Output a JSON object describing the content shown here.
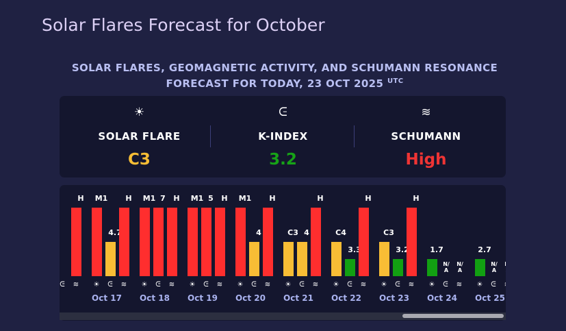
{
  "page": {
    "title": "Solar Flares Forecast for October"
  },
  "heading": {
    "line1": "SOLAR FLARES, GEOMAGNETIC ACTIVITY, AND SCHUMANN RESONANCE",
    "line2": "FORECAST FOR TODAY, 23 OCT 2025",
    "utc": "UTC"
  },
  "summary": [
    {
      "icon": "sun-icon",
      "glyph": "☀",
      "label": "SOLAR FLARE",
      "value": "C3",
      "color": "#f6bd35"
    },
    {
      "icon": "magnet-icon",
      "glyph": "ᕮ",
      "label": "K-INDEX",
      "value": "3.2",
      "color": "#17a317"
    },
    {
      "icon": "waves-icon",
      "glyph": "≋",
      "label": "SCHUMANN",
      "value": "High",
      "color": "#f03434"
    }
  ],
  "colors": {
    "red": "#ff2e2e",
    "yellow": "#f8bd35",
    "green": "#12a012"
  },
  "icon_glyphs": {
    "sun": "☀",
    "magnet": "ᕮ",
    "waves": "≋"
  },
  "days": [
    {
      "date": "",
      "flare": {
        "label": "",
        "level": 1.0,
        "color": "red"
      },
      "k": {
        "label": "",
        "level": 0,
        "color": ""
      },
      "schumann": {
        "label": "H",
        "level": 1.0,
        "color": "red"
      }
    },
    {
      "date": "Oct 17",
      "flare": {
        "label": "M1",
        "level": 1.0,
        "color": "red"
      },
      "k": {
        "label": "4.7",
        "level": 0.5,
        "color": "yellow"
      },
      "schumann": {
        "label": "H",
        "level": 1.0,
        "color": "red"
      }
    },
    {
      "date": "Oct 18",
      "flare": {
        "label": "M1",
        "level": 1.0,
        "color": "red"
      },
      "k": {
        "label": "7",
        "level": 1.0,
        "color": "red"
      },
      "schumann": {
        "label": "H",
        "level": 1.0,
        "color": "red"
      }
    },
    {
      "date": "Oct 19",
      "flare": {
        "label": "M1",
        "level": 1.0,
        "color": "red"
      },
      "k": {
        "label": "5",
        "level": 1.0,
        "color": "red"
      },
      "schumann": {
        "label": "H",
        "level": 1.0,
        "color": "red"
      }
    },
    {
      "date": "Oct 20",
      "flare": {
        "label": "M1",
        "level": 1.0,
        "color": "red"
      },
      "k": {
        "label": "4",
        "level": 0.5,
        "color": "yellow"
      },
      "schumann": {
        "label": "H",
        "level": 1.0,
        "color": "red"
      }
    },
    {
      "date": "Oct 21",
      "flare": {
        "label": "C3",
        "level": 0.5,
        "color": "yellow"
      },
      "k": {
        "label": "4",
        "level": 0.5,
        "color": "yellow"
      },
      "schumann": {
        "label": "H",
        "level": 1.0,
        "color": "red"
      }
    },
    {
      "date": "Oct 22",
      "flare": {
        "label": "C4",
        "level": 0.5,
        "color": "yellow"
      },
      "k": {
        "label": "3.3",
        "level": 0.25,
        "color": "green"
      },
      "schumann": {
        "label": "H",
        "level": 1.0,
        "color": "red"
      }
    },
    {
      "date": "Oct 23",
      "flare": {
        "label": "C3",
        "level": 0.5,
        "color": "yellow"
      },
      "k": {
        "label": "3.2",
        "level": 0.25,
        "color": "green"
      },
      "schumann": {
        "label": "H",
        "level": 1.0,
        "color": "red"
      }
    },
    {
      "date": "Oct 24",
      "flare": {
        "label": "1.7",
        "level": 0.25,
        "color": "green"
      },
      "k": {
        "label": "N/A",
        "level": 0,
        "color": ""
      },
      "schumann": {
        "label": "N/A",
        "level": 0,
        "color": ""
      }
    },
    {
      "date": "Oct 25",
      "flare": {
        "label": "2.7",
        "level": 0.25,
        "color": "green"
      },
      "k": {
        "label": "N/A",
        "level": 0,
        "color": ""
      },
      "schumann": {
        "label": "N/A",
        "level": 0,
        "color": ""
      }
    }
  ]
}
